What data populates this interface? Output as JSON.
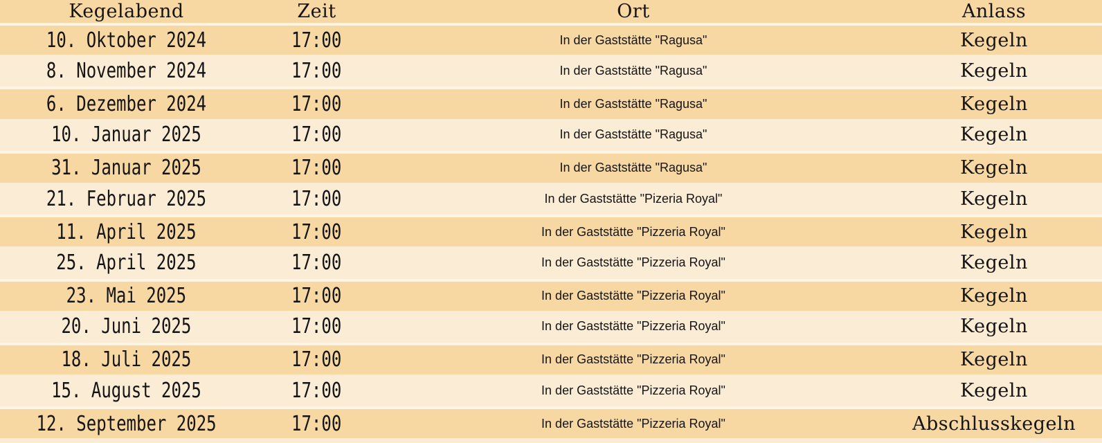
{
  "colors": {
    "row_dark": "#f7d8a3",
    "row_light": "#fbecd5",
    "separator_light": "#fdf4e4",
    "page_bg": "#fbecd5",
    "text": "#141414"
  },
  "table": {
    "headers": [
      "Kegelabend",
      "Zeit",
      "Ort",
      "Anlass"
    ],
    "rows": [
      {
        "date": "10. Oktober 2024",
        "time": "17:00",
        "ort": "In der Gaststätte \"Ragusa\"",
        "anlass": "Kegeln"
      },
      {
        "date": "8. November 2024",
        "time": "17:00",
        "ort": "In der Gaststätte \"Ragusa\"",
        "anlass": "Kegeln"
      },
      {
        "date": "6. Dezember 2024",
        "time": "17:00",
        "ort": "In der Gaststätte \"Ragusa\"",
        "anlass": "Kegeln"
      },
      {
        "date": "10. Januar 2025",
        "time": "17:00",
        "ort": "In der Gaststätte \"Ragusa\"",
        "anlass": "Kegeln"
      },
      {
        "date": "31. Januar 2025",
        "time": "17:00",
        "ort": "In der Gaststätte \"Ragusa\"",
        "anlass": "Kegeln"
      },
      {
        "date": "21. Februar 2025",
        "time": "17:00",
        "ort": "In der Gaststätte \"Pizeria Royal\"",
        "anlass": "Kegeln"
      },
      {
        "date": "11. April 2025",
        "time": "17:00",
        "ort": "In der Gaststätte \"Pizzeria Royal\"",
        "anlass": "Kegeln"
      },
      {
        "date": "25. April 2025",
        "time": "17:00",
        "ort": "In der Gaststätte \"Pizzeria Royal\"",
        "anlass": "Kegeln"
      },
      {
        "date": "23. Mai 2025",
        "time": "17:00",
        "ort": "In der Gaststätte \"Pizzeria Royal\"",
        "anlass": "Kegeln"
      },
      {
        "date": "20. Juni 2025",
        "time": "17:00",
        "ort": "In der Gaststätte \"Pizzeria Royal\"",
        "anlass": "Kegeln"
      },
      {
        "date": "18. Juli 2025",
        "time": "17:00",
        "ort": "In der Gaststätte \"Pizzeria Royal\"",
        "anlass": "Kegeln"
      },
      {
        "date": "15. August 2025",
        "time": "17:00",
        "ort": "In der Gaststätte \"Pizzeria Royal\"",
        "anlass": "Kegeln"
      },
      {
        "date": "12. September 2025",
        "time": "17:00",
        "ort": "In der Gaststätte \"Pizzeria Royal\"",
        "anlass": "Abschlusskegeln"
      }
    ]
  }
}
